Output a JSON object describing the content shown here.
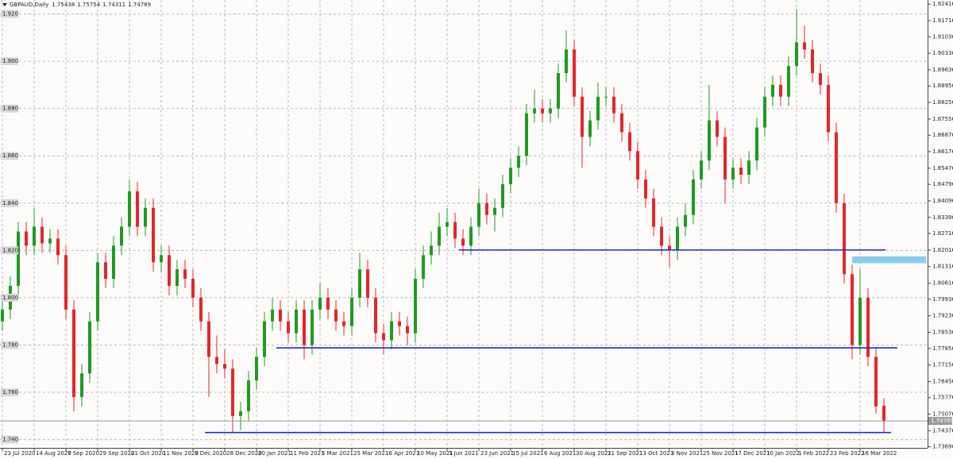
{
  "chart_data": {
    "type": "candlestick",
    "symbol": "GBPAUD,Daily",
    "up_color": "#1f9a1f",
    "down_color": "#e3262b",
    "grid": true,
    "ylim": [
      1.7365,
      1.9259
    ],
    "xlim": [
      -0.3,
      116.5
    ],
    "open": [
      1.79,
      1.795,
      1.805,
      1.828,
      1.822,
      1.83,
      1.823,
      1.825,
      1.818,
      1.795,
      1.758,
      1.768,
      1.79,
      1.815,
      1.808,
      1.822,
      1.83,
      1.845,
      1.83,
      1.838,
      1.815,
      1.818,
      1.805,
      1.812,
      1.808,
      1.8,
      1.79,
      1.775,
      1.772,
      1.77,
      1.75,
      1.752,
      1.765,
      1.775,
      1.79,
      1.795,
      1.79,
      1.785,
      1.795,
      1.78,
      1.795,
      1.8,
      1.795,
      1.79,
      1.788,
      1.8,
      1.812,
      1.8,
      1.785,
      1.782,
      1.79,
      1.788,
      1.785,
      1.808,
      1.818,
      1.822,
      1.83,
      1.832,
      1.825,
      1.822,
      1.83,
      1.84,
      1.835,
      1.838,
      1.848,
      1.855,
      1.86,
      1.878,
      1.88,
      1.878,
      1.88,
      1.895,
      1.905,
      1.885,
      1.868,
      1.875,
      1.885,
      1.885,
      1.878,
      1.87,
      1.862,
      1.85,
      1.842,
      1.83,
      1.822,
      1.82,
      1.83,
      1.835,
      1.85,
      1.858,
      1.875,
      1.868,
      1.85,
      1.855,
      1.852,
      1.858,
      1.872,
      1.885,
      1.89,
      1.885,
      1.898,
      1.908,
      1.905,
      1.895,
      1.89,
      1.87,
      1.84,
      1.81,
      1.78,
      1.8,
      1.775,
      1.75438
    ],
    "high": [
      1.799,
      1.809,
      1.832,
      1.832,
      1.838,
      1.834,
      1.829,
      1.829,
      1.822,
      1.799,
      1.772,
      1.794,
      1.819,
      1.819,
      1.826,
      1.834,
      1.85,
      1.849,
      1.842,
      1.842,
      1.822,
      1.822,
      1.816,
      1.816,
      1.812,
      1.804,
      1.794,
      1.784,
      1.778,
      1.774,
      1.756,
      1.769,
      1.779,
      1.794,
      1.8,
      1.799,
      1.794,
      1.799,
      1.799,
      1.799,
      1.806,
      1.804,
      1.799,
      1.794,
      1.804,
      1.819,
      1.816,
      1.804,
      1.789,
      1.794,
      1.794,
      1.792,
      1.812,
      1.822,
      1.828,
      1.836,
      1.838,
      1.836,
      1.829,
      1.834,
      1.846,
      1.844,
      1.842,
      1.852,
      1.859,
      1.864,
      1.882,
      1.888,
      1.884,
      1.884,
      1.899,
      1.913,
      1.909,
      1.889,
      1.879,
      1.891,
      1.889,
      1.889,
      1.882,
      1.874,
      1.866,
      1.854,
      1.846,
      1.834,
      1.826,
      1.834,
      1.84,
      1.854,
      1.862,
      1.89,
      1.879,
      1.872,
      1.859,
      1.859,
      1.862,
      1.876,
      1.889,
      1.894,
      1.894,
      1.902,
      1.922,
      1.915,
      1.909,
      1.899,
      1.894,
      1.874,
      1.844,
      1.814,
      1.812,
      1.804,
      1.779,
      1.75754
    ],
    "low": [
      1.786,
      1.791,
      1.801,
      1.818,
      1.818,
      1.819,
      1.819,
      1.814,
      1.791,
      1.752,
      1.754,
      1.764,
      1.786,
      1.804,
      1.804,
      1.818,
      1.826,
      1.826,
      1.826,
      1.811,
      1.811,
      1.801,
      1.801,
      1.804,
      1.796,
      1.786,
      1.758,
      1.768,
      1.766,
      1.743,
      1.744,
      1.748,
      1.761,
      1.771,
      1.786,
      1.786,
      1.781,
      1.781,
      1.774,
      1.776,
      1.791,
      1.791,
      1.786,
      1.784,
      1.784,
      1.796,
      1.796,
      1.781,
      1.776,
      1.778,
      1.784,
      1.78,
      1.781,
      1.804,
      1.814,
      1.818,
      1.826,
      1.821,
      1.818,
      1.818,
      1.826,
      1.831,
      1.828,
      1.834,
      1.844,
      1.851,
      1.856,
      1.874,
      1.874,
      1.874,
      1.876,
      1.891,
      1.881,
      1.855,
      1.864,
      1.871,
      1.881,
      1.874,
      1.866,
      1.858,
      1.846,
      1.838,
      1.826,
      1.818,
      1.813,
      1.816,
      1.826,
      1.831,
      1.846,
      1.854,
      1.864,
      1.84,
      1.846,
      1.848,
      1.848,
      1.854,
      1.868,
      1.881,
      1.881,
      1.881,
      1.894,
      1.901,
      1.891,
      1.886,
      1.866,
      1.836,
      1.806,
      1.774,
      1.776,
      1.771,
      1.751,
      1.74311
    ],
    "close": [
      1.795,
      1.805,
      1.828,
      1.822,
      1.83,
      1.823,
      1.825,
      1.818,
      1.795,
      1.758,
      1.768,
      1.79,
      1.815,
      1.808,
      1.822,
      1.83,
      1.845,
      1.83,
      1.838,
      1.815,
      1.818,
      1.805,
      1.812,
      1.808,
      1.8,
      1.79,
      1.775,
      1.772,
      1.77,
      1.75,
      1.752,
      1.765,
      1.775,
      1.79,
      1.795,
      1.79,
      1.785,
      1.795,
      1.78,
      1.795,
      1.8,
      1.795,
      1.79,
      1.788,
      1.8,
      1.812,
      1.8,
      1.785,
      1.782,
      1.79,
      1.788,
      1.785,
      1.808,
      1.818,
      1.822,
      1.83,
      1.832,
      1.825,
      1.822,
      1.83,
      1.84,
      1.835,
      1.838,
      1.848,
      1.855,
      1.86,
      1.878,
      1.88,
      1.878,
      1.88,
      1.895,
      1.905,
      1.885,
      1.868,
      1.875,
      1.885,
      1.885,
      1.878,
      1.87,
      1.862,
      1.85,
      1.842,
      1.83,
      1.822,
      1.82,
      1.83,
      1.835,
      1.85,
      1.858,
      1.875,
      1.868,
      1.85,
      1.855,
      1.852,
      1.858,
      1.872,
      1.885,
      1.89,
      1.885,
      1.898,
      1.908,
      1.905,
      1.895,
      1.89,
      1.87,
      1.84,
      1.81,
      1.78,
      1.8,
      1.775,
      1.754,
      1.74789
    ],
    "yticks": [
      {
        "value": 1.74,
        "label": "1.740"
      },
      {
        "value": 1.76,
        "label": "1.760"
      },
      {
        "value": 1.78,
        "label": "1.780"
      },
      {
        "value": 1.8,
        "label": "1.800"
      },
      {
        "value": 1.82,
        "label": "1.820"
      },
      {
        "value": 1.84,
        "label": "1.840"
      },
      {
        "value": 1.86,
        "label": "1.860"
      },
      {
        "value": 1.88,
        "label": "1.880"
      },
      {
        "value": 1.9,
        "label": "1.900"
      },
      {
        "value": 1.92,
        "label": "1.920"
      }
    ],
    "y2ticks": [
      1.92416,
      1.91716,
      1.91036,
      1.90336,
      1.89636,
      1.88956,
      1.88256,
      1.87556,
      1.86876,
      1.86176,
      1.85476,
      1.84796,
      1.84096,
      1.83396,
      1.82716,
      1.82016,
      1.81316,
      1.80616,
      1.79936,
      1.79236,
      1.78536,
      1.77856,
      1.77156,
      1.76456,
      1.75776,
      1.75076,
      1.74376,
      1.73696
    ],
    "xticks": [
      {
        "value": 0,
        "label": "23 Jul 2020"
      },
      {
        "value": 4,
        "label": "14 Aug 2020"
      },
      {
        "value": 8,
        "label": "7 Sep 2020"
      },
      {
        "value": 12,
        "label": "29 Sep 2020"
      },
      {
        "value": 16,
        "label": "21 Oct 2020"
      },
      {
        "value": 20,
        "label": "11 Nov 2020"
      },
      {
        "value": 24,
        "label": "3 Dec 2020"
      },
      {
        "value": 28,
        "label": "28 Dec 2020"
      },
      {
        "value": 32,
        "label": "20 Jan 2021"
      },
      {
        "value": 36,
        "label": "11 Feb 2021"
      },
      {
        "value": 40,
        "label": "5 Mar 2021"
      },
      {
        "value": 44,
        "label": "25 Mar 2021"
      },
      {
        "value": 48,
        "label": "16 Apr 2021"
      },
      {
        "value": 52,
        "label": "10 May 2021"
      },
      {
        "value": 56,
        "label": "1 Jun 2021"
      },
      {
        "value": 60,
        "label": "23 Jun 2021"
      },
      {
        "value": 64,
        "label": "15 Jul 2021"
      },
      {
        "value": 68,
        "label": "6 Aug 2021"
      },
      {
        "value": 72,
        "label": "30 Aug 2021"
      },
      {
        "value": 76,
        "label": "21 Sep 2021"
      },
      {
        "value": 80,
        "label": "13 Oct 2021"
      },
      {
        "value": 84,
        "label": "3 Nov 2021"
      },
      {
        "value": 88,
        "label": "25 Nov 2021"
      },
      {
        "value": 92,
        "label": "17 Dec 2021"
      },
      {
        "value": 96,
        "label": "10 Jan 2022"
      },
      {
        "value": 100,
        "label": "1 Feb 2022"
      },
      {
        "value": 104,
        "label": "23 Feb 2022"
      },
      {
        "value": 108,
        "label": "16 Mar 2022"
      }
    ],
    "levels": [
      {
        "value": 1.8202,
        "start": 57.5,
        "end": 111.2,
        "color": "#1a2bd6"
      },
      {
        "value": 1.7788,
        "start": 34.5,
        "end": 112.7,
        "color": "#1a2bd6"
      },
      {
        "value": 1.743,
        "start": 25.5,
        "end": 111.9,
        "color": "#1a2bd6"
      }
    ],
    "zones": [
      {
        "low": 1.8146,
        "high": 1.8175,
        "start": 107,
        "color": "#87ceeb"
      }
    ]
  }
}
